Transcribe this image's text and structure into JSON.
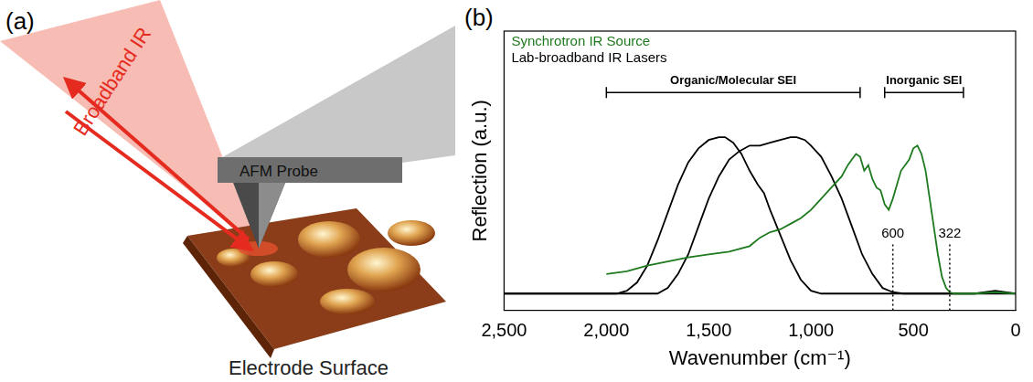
{
  "panel_a": {
    "label": "(a)",
    "beam": "Broadband IR",
    "probe": "AFM Probe",
    "surface": "Electrode Surface"
  },
  "panel_b": {
    "label": "(b)"
  },
  "chart_data": {
    "type": "line",
    "x_label": "Wavenumber (cm⁻¹)",
    "y_label": "Reflection (a.u.)",
    "xlim": [
      2500,
      0
    ],
    "xticks": [
      2500,
      2000,
      1500,
      1000,
      500,
      0
    ],
    "ylim": [
      0,
      1
    ],
    "tick_labels": "x",
    "grid": false,
    "legend": "upper left",
    "annotations": [
      {
        "text": "Organic/Molecular SEI",
        "x": [
          2000,
          760
        ]
      },
      {
        "text": "Inorganic SEI",
        "x": [
          640,
          255
        ]
      },
      {
        "text": "600",
        "x": 600
      },
      {
        "text": "322",
        "x": 322
      }
    ],
    "series": [
      {
        "name": "Synchrotron IR Source",
        "color": "#1e7a1e",
        "x": [
          2000,
          1900,
          1800,
          1700,
          1600,
          1500,
          1400,
          1300,
          1250,
          1200,
          1150,
          1100,
          1050,
          1000,
          950,
          900,
          850,
          820,
          800,
          780,
          760,
          740,
          720,
          700,
          680,
          660,
          640,
          620,
          600,
          580,
          560,
          540,
          520,
          500,
          480,
          460,
          440,
          420,
          400,
          380,
          360,
          340,
          322,
          300,
          200,
          100,
          0
        ],
        "values": [
          0.13,
          0.14,
          0.16,
          0.175,
          0.19,
          0.2,
          0.21,
          0.23,
          0.26,
          0.28,
          0.29,
          0.31,
          0.33,
          0.36,
          0.4,
          0.44,
          0.48,
          0.52,
          0.54,
          0.56,
          0.55,
          0.5,
          0.52,
          0.47,
          0.44,
          0.43,
          0.38,
          0.36,
          0.4,
          0.45,
          0.5,
          0.52,
          0.54,
          0.58,
          0.59,
          0.56,
          0.5,
          0.4,
          0.3,
          0.2,
          0.12,
          0.08,
          0.065,
          0.06,
          0.06,
          0.065,
          0.06
        ]
      },
      {
        "name": "Lab-broadband IR Lasers",
        "color": "#000000",
        "x": [
          2500,
          1950,
          1900,
          1850,
          1800,
          1750,
          1700,
          1650,
          1600,
          1550,
          1500,
          1450,
          1420,
          1380,
          1340,
          1300,
          1260,
          1230,
          1200,
          1150,
          1100,
          1050,
          1000,
          950,
          0
        ],
        "values": [
          0.06,
          0.06,
          0.07,
          0.1,
          0.16,
          0.25,
          0.35,
          0.45,
          0.53,
          0.58,
          0.61,
          0.62,
          0.62,
          0.6,
          0.56,
          0.5,
          0.45,
          0.42,
          0.36,
          0.27,
          0.18,
          0.11,
          0.07,
          0.06,
          0.06
        ]
      },
      {
        "name": null,
        "color": "#000000",
        "x": [
          2500,
          1750,
          1700,
          1650,
          1600,
          1550,
          1500,
          1450,
          1400,
          1350,
          1300,
          1250,
          1200,
          1150,
          1100,
          1070,
          1030,
          1000,
          950,
          900,
          850,
          800,
          750,
          700,
          650,
          600,
          550,
          200,
          100,
          0
        ],
        "values": [
          0.06,
          0.06,
          0.08,
          0.13,
          0.2,
          0.3,
          0.4,
          0.48,
          0.54,
          0.57,
          0.59,
          0.59,
          0.6,
          0.61,
          0.62,
          0.62,
          0.61,
          0.59,
          0.55,
          0.48,
          0.4,
          0.3,
          0.2,
          0.13,
          0.08,
          0.065,
          0.06,
          0.06,
          0.07,
          0.06
        ]
      }
    ]
  }
}
